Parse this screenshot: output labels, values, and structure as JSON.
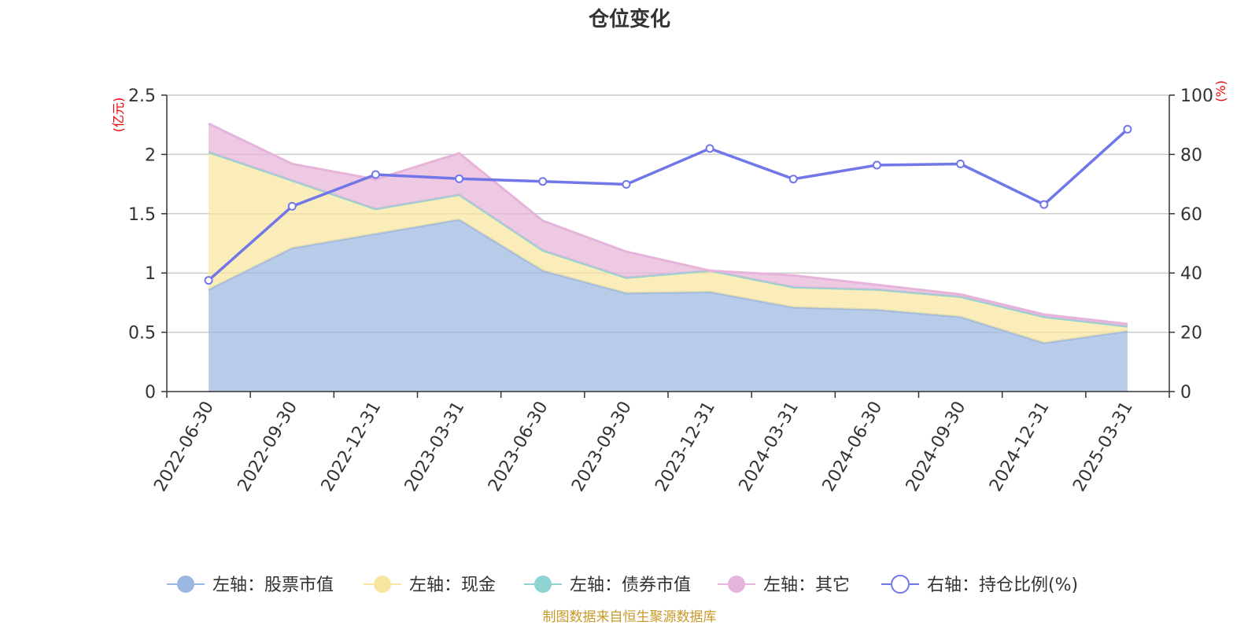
{
  "title": "仓位变化",
  "source": "制图数据来自恒生聚源数据库",
  "chart_data": {
    "type": "area",
    "categories": [
      "2022-06-30",
      "2022-09-30",
      "2022-12-31",
      "2023-03-31",
      "2023-06-30",
      "2023-09-30",
      "2023-12-31",
      "2024-03-31",
      "2024-06-30",
      "2024-09-30",
      "2024-12-31",
      "2025-03-31"
    ],
    "left_axis": {
      "unit": "(亿元)",
      "ylim": [
        0,
        2.5
      ],
      "ticks": [
        "0",
        "0.5",
        "1",
        "1.5",
        "2",
        "2.5"
      ],
      "tick_values": [
        0,
        0.5,
        1,
        1.5,
        2,
        2.5
      ]
    },
    "right_axis": {
      "unit": "(%)",
      "ylim": [
        0,
        100
      ],
      "ticks": [
        "0",
        "20",
        "40",
        "60",
        "80",
        "100"
      ],
      "tick_values": [
        0,
        20,
        40,
        60,
        80,
        100
      ]
    },
    "series": [
      {
        "name": "左轴：股票市值",
        "type": "area",
        "axis": "left",
        "stack": true,
        "color": "#9db8e0",
        "values": [
          0.86,
          1.21,
          1.33,
          1.45,
          1.02,
          0.83,
          0.84,
          0.71,
          0.69,
          0.63,
          0.41,
          0.51
        ]
      },
      {
        "name": "左轴：现金",
        "type": "area",
        "axis": "left",
        "stack": true,
        "color": "#f8e6a0",
        "values": [
          1.16,
          0.57,
          0.21,
          0.21,
          0.17,
          0.13,
          0.18,
          0.17,
          0.17,
          0.17,
          0.22,
          0.04
        ]
      },
      {
        "name": "左轴：债券市值",
        "type": "area",
        "axis": "left",
        "stack": true,
        "color": "#8fd3d3",
        "values": [
          0,
          0,
          0,
          0,
          0,
          0,
          0,
          0,
          0,
          0,
          0,
          0
        ]
      },
      {
        "name": "左轴：其它",
        "type": "area",
        "axis": "left",
        "stack": true,
        "color": "#e6b4da",
        "values": [
          0.24,
          0.14,
          0.25,
          0.35,
          0.25,
          0.22,
          0.0,
          0.1,
          0.04,
          0.02,
          0.02,
          0.02
        ]
      },
      {
        "name": "右轴：持仓比例(%)",
        "type": "line",
        "axis": "right",
        "color": "#7177e8",
        "values": [
          37.5,
          62.5,
          73.2,
          71.8,
          70.9,
          69.9,
          82.0,
          71.7,
          76.4,
          76.8,
          63.1,
          88.5
        ]
      }
    ],
    "grid": true,
    "legend": "bottom"
  }
}
